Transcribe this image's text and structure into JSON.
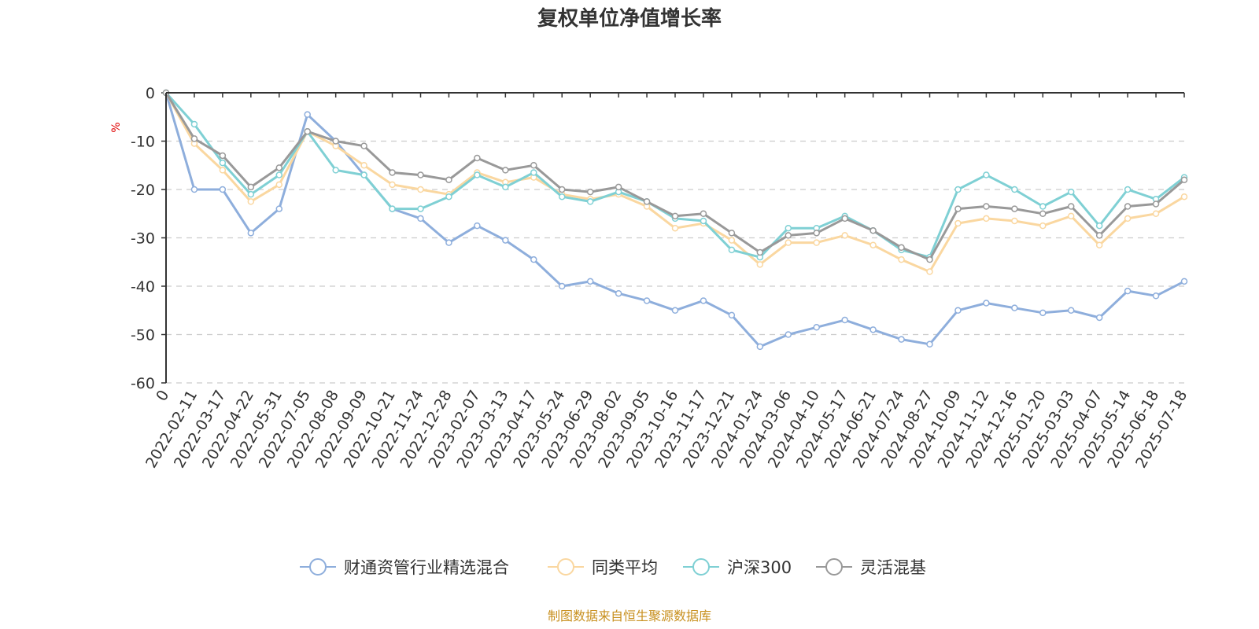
{
  "chart_data": {
    "type": "line",
    "title": "复权单位净值增长率",
    "ylabel": "%",
    "ylim": [
      -60,
      0
    ],
    "yticks": [
      0,
      -10,
      -20,
      -30,
      -40,
      -50,
      -60
    ],
    "grid": true,
    "legend_position": "bottom",
    "x_tick_labels": [
      "0",
      "2022-02-11",
      "2022-03-17",
      "2022-04-22",
      "2022-05-31",
      "2022-07-05",
      "2022-08-08",
      "2022-09-09",
      "2022-10-21",
      "2022-11-24",
      "2022-12-28",
      "2023-02-07",
      "2023-03-13",
      "2023-04-17",
      "2023-05-24",
      "2023-06-29",
      "2023-08-02",
      "2023-09-05",
      "2023-10-16",
      "2023-11-17",
      "2023-12-21",
      "2024-01-24",
      "2024-03-06",
      "2024-04-10",
      "2024-05-17",
      "2024-06-21",
      "2024-07-24",
      "2024-08-27",
      "2024-10-09",
      "2024-11-12",
      "2024-12-16",
      "2025-01-20",
      "2025-03-03",
      "2025-04-07",
      "2025-05-14",
      "2025-06-18",
      "2025-07-18"
    ],
    "series": [
      {
        "name": "财通资管行业精选混合",
        "color": "#8eaedc",
        "values": [
          0,
          -20,
          -20,
          -29,
          -24,
          -4.5,
          -10,
          -17,
          -24,
          -26,
          -31,
          -27.5,
          -30.5,
          -34.5,
          -40,
          -39,
          -41.5,
          -43,
          -45,
          -43,
          -46,
          -52.5,
          -50,
          -48.5,
          -47,
          -49,
          -51,
          -52,
          -45,
          -43.5,
          -44.5,
          -45.5,
          -45,
          -46.5,
          -41,
          -42,
          -39
        ]
      },
      {
        "name": "同类平均",
        "color": "#fad7a0",
        "values": [
          0,
          -10.5,
          -16,
          -22.5,
          -19,
          -8,
          -11,
          -15,
          -19,
          -20,
          -21,
          -16.5,
          -18.5,
          -17.5,
          -21,
          -22,
          -21,
          -23.5,
          -28,
          -27,
          -30.5,
          -35.5,
          -31,
          -31,
          -29.5,
          -31.5,
          -34.5,
          -37,
          -27,
          -26,
          -26.5,
          -27.5,
          -25.5,
          -31.5,
          -26,
          -25,
          -21.5
        ]
      },
      {
        "name": "沪深300",
        "color": "#7fd0d4",
        "values": [
          0,
          -6.5,
          -14.5,
          -21,
          -17,
          -8,
          -16,
          -17,
          -24,
          -24,
          -21.5,
          -17,
          -19.5,
          -16.5,
          -21.5,
          -22.5,
          -20.5,
          -22.5,
          -26,
          -26.5,
          -32.5,
          -34,
          -28,
          -28,
          -25.5,
          -28.5,
          -32.5,
          -34,
          -20,
          -17,
          -20,
          -23.5,
          -20.5,
          -27.5,
          -20,
          -22,
          -17.5
        ]
      },
      {
        "name": "灵活混基",
        "color": "#999999",
        "values": [
          0,
          -9.5,
          -13,
          -19.5,
          -15.5,
          -8,
          -10,
          -11,
          -16.5,
          -17,
          -18,
          -13.5,
          -16,
          -15,
          -20,
          -20.5,
          -19.5,
          -22.5,
          -25.5,
          -25,
          -29,
          -33,
          -29.5,
          -29,
          -26,
          -28.5,
          -32,
          -34.5,
          -24,
          -23.5,
          -24,
          -25,
          -23.5,
          -29.5,
          -23.5,
          -23,
          -18
        ]
      }
    ]
  },
  "source_note": "制图数据来自恒生聚源数据库"
}
